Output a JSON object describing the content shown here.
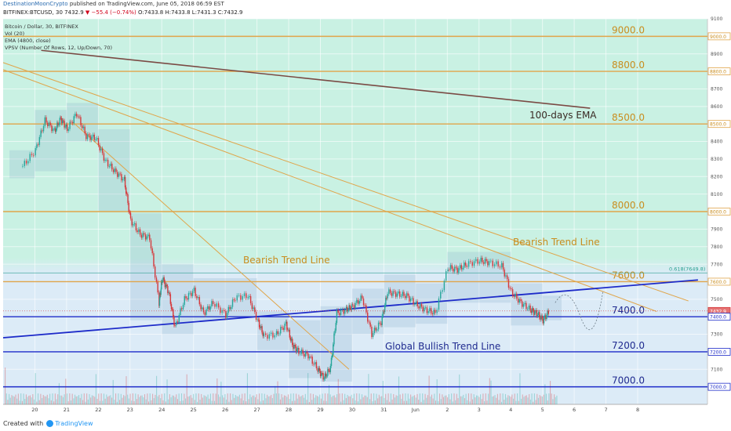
{
  "header": {
    "author": "DestinationMoonCrypto",
    "published": "published on TradingView.com, June 05, 2018 06:59 EST",
    "symbol": "BITFINEX:BTCUSD, 30",
    "last": "7432.9",
    "change": "−55.4 (−0.74%)",
    "ohlc": "O:7433.8 H:7433.8 L:7431.3 C:7432.9"
  },
  "legend": [
    "Bitcoin / Dollar, 30, BITFINEX",
    "Vol (20)",
    "EMA (4800, close)",
    "VPSV (Number Of Rows, 12, Up/Down, 70)"
  ],
  "footer": {
    "created_with": "Created with",
    "brand": "TradingView"
  },
  "colors": {
    "up": "#26a69a",
    "down": "#d5383b",
    "hline": "#e0a54a",
    "trend": "#1d2bc9",
    "ema": "#7a4a44",
    "bg_top": "#c9f1e3",
    "bg_bottom": "#dcebf7"
  },
  "chart_data": {
    "type": "candlestick",
    "symbol": "BITFINEX:BTCUSD",
    "timeframe": "30",
    "ylim": [
      6900,
      9100
    ],
    "x_ticks": [
      "20",
      "21",
      "22",
      "23",
      "24",
      "25",
      "26",
      "27",
      "28",
      "29",
      "30",
      "31",
      "Jun",
      "2",
      "3",
      "4",
      "5",
      "6",
      "7",
      "8"
    ],
    "y_ticks": [
      9100,
      9000,
      8900,
      8800,
      8700,
      8600,
      8500,
      8400,
      8300,
      8200,
      8100,
      8000,
      7900,
      7800,
      7700,
      7600,
      7500,
      7400,
      7300,
      7200,
      7100,
      7000
    ],
    "price_series": [
      {
        "day": 19.6,
        "close": 8260
      },
      {
        "day": 20.0,
        "close": 8350
      },
      {
        "day": 20.3,
        "close": 8520
      },
      {
        "day": 20.6,
        "close": 8460
      },
      {
        "day": 20.8,
        "close": 8530
      },
      {
        "day": 21.0,
        "close": 8470
      },
      {
        "day": 21.3,
        "close": 8560
      },
      {
        "day": 21.6,
        "close": 8430
      },
      {
        "day": 21.9,
        "close": 8420
      },
      {
        "day": 22.2,
        "close": 8290
      },
      {
        "day": 22.5,
        "close": 8230
      },
      {
        "day": 22.8,
        "close": 8180
      },
      {
        "day": 23.0,
        "close": 7950
      },
      {
        "day": 23.3,
        "close": 7870
      },
      {
        "day": 23.6,
        "close": 7850
      },
      {
        "day": 23.9,
        "close": 7480
      },
      {
        "day": 24.0,
        "close": 7620
      },
      {
        "day": 24.2,
        "close": 7540
      },
      {
        "day": 24.4,
        "close": 7340
      },
      {
        "day": 24.7,
        "close": 7500
      },
      {
        "day": 25.0,
        "close": 7550
      },
      {
        "day": 25.3,
        "close": 7420
      },
      {
        "day": 25.6,
        "close": 7480
      },
      {
        "day": 26.0,
        "close": 7410
      },
      {
        "day": 26.3,
        "close": 7510
      },
      {
        "day": 26.7,
        "close": 7520
      },
      {
        "day": 27.0,
        "close": 7380
      },
      {
        "day": 27.2,
        "close": 7290
      },
      {
        "day": 27.6,
        "close": 7300
      },
      {
        "day": 27.9,
        "close": 7360
      },
      {
        "day": 28.1,
        "close": 7240
      },
      {
        "day": 28.3,
        "close": 7200
      },
      {
        "day": 28.6,
        "close": 7180
      },
      {
        "day": 28.9,
        "close": 7100
      },
      {
        "day": 29.1,
        "close": 7050
      },
      {
        "day": 29.3,
        "close": 7110
      },
      {
        "day": 29.5,
        "close": 7420
      },
      {
        "day": 29.8,
        "close": 7440
      },
      {
        "day": 30.0,
        "close": 7460
      },
      {
        "day": 30.3,
        "close": 7510
      },
      {
        "day": 30.6,
        "close": 7300
      },
      {
        "day": 30.9,
        "close": 7370
      },
      {
        "day": 31.1,
        "close": 7540
      },
      {
        "day": 31.4,
        "close": 7530
      },
      {
        "day": 31.7,
        "close": 7520
      },
      {
        "day": 32.0,
        "close": 7470
      },
      {
        "day": 32.3,
        "close": 7440
      },
      {
        "day": 32.6,
        "close": 7420
      },
      {
        "day": 33.0,
        "close": 7680
      },
      {
        "day": 33.3,
        "close": 7670
      },
      {
        "day": 33.6,
        "close": 7700
      },
      {
        "day": 34.0,
        "close": 7720
      },
      {
        "day": 34.3,
        "close": 7710
      },
      {
        "day": 34.7,
        "close": 7690
      },
      {
        "day": 35.0,
        "close": 7540
      },
      {
        "day": 35.3,
        "close": 7480
      },
      {
        "day": 35.6,
        "close": 7440
      },
      {
        "day": 35.8,
        "close": 7420
      },
      {
        "day": 36.0,
        "close": 7380
      },
      {
        "day": 36.2,
        "close": 7432.9
      }
    ],
    "horizontal_levels": [
      {
        "label": "9000.0",
        "value": 9000,
        "color": "#e0a54a"
      },
      {
        "label": "8800.0",
        "value": 8800,
        "color": "#e0a54a"
      },
      {
        "label": "8500.0",
        "value": 8500,
        "color": "#e0a54a"
      },
      {
        "label": "8000.0",
        "value": 8000,
        "color": "#e0a54a"
      },
      {
        "label": "7600.0",
        "value": 7600,
        "color": "#e0a54a"
      },
      {
        "label": "7400.0",
        "value": 7400,
        "color": "#1d2bc9"
      },
      {
        "label": "7200.0",
        "value": 7200,
        "color": "#1d2bc9"
      },
      {
        "label": "7000.0",
        "value": 7000,
        "color": "#1d2bc9"
      }
    ],
    "trend_lines": [
      {
        "label": "Bearish Trend Line",
        "from": [
          19.0,
          8850
        ],
        "to": [
          40.6,
          7490
        ],
        "color": "#e0a54a"
      },
      {
        "label": "Bearish Trend Line",
        "from": [
          19.0,
          8810
        ],
        "to": [
          39.6,
          7430
        ],
        "color": "#e0a54a"
      },
      {
        "label": "",
        "from": [
          21.2,
          8510
        ],
        "to": [
          29.9,
          7100
        ],
        "color": "#e0a54a"
      },
      {
        "label": "Global Bullish Trend Line",
        "from": [
          19.0,
          7280
        ],
        "to": [
          40.9,
          7610
        ],
        "color": "#1d2bc9"
      },
      {
        "label": "100-days EMA",
        "from": [
          20.2,
          8920
        ],
        "to": [
          37.5,
          8590
        ],
        "color": "#7a4a44"
      }
    ],
    "fib_level": {
      "label": "0.618(7649.8)",
      "value": 7649.8
    },
    "price_labels": [
      "7432.9",
      "7400.0",
      "7200.0",
      "7000.0",
      "7600.0",
      "8000.0",
      "8500.0",
      "8800.0",
      "9000.0"
    ]
  }
}
